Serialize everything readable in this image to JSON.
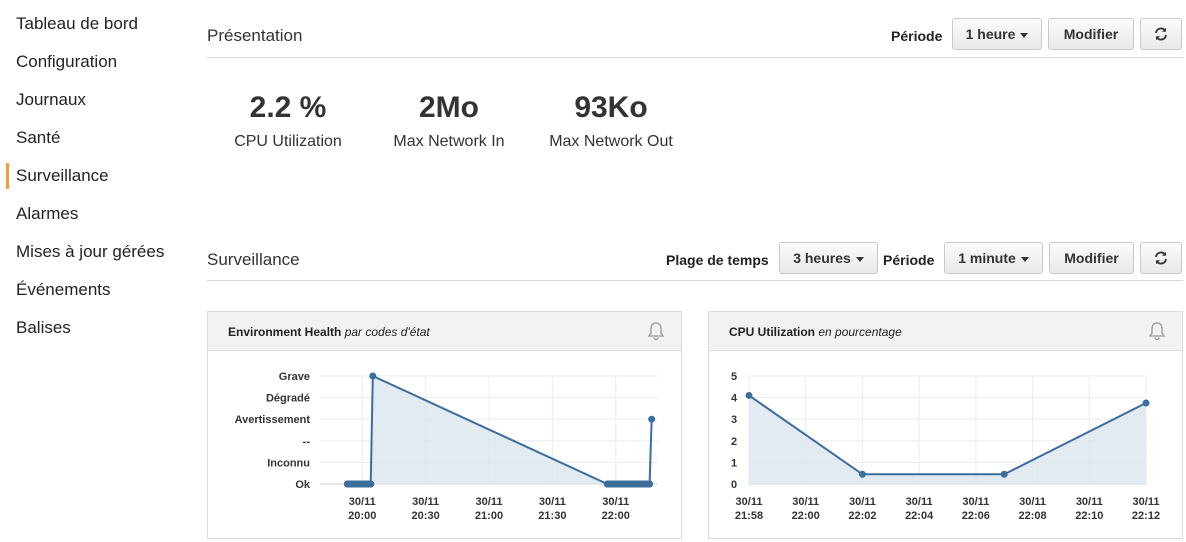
{
  "sidebar": {
    "items": [
      {
        "label": "Tableau de bord"
      },
      {
        "label": "Configuration"
      },
      {
        "label": "Journaux"
      },
      {
        "label": "Santé"
      },
      {
        "label": "Surveillance",
        "active": true
      },
      {
        "label": "Alarmes"
      },
      {
        "label": "Mises à jour gérées"
      },
      {
        "label": "Événements"
      },
      {
        "label": "Balises"
      }
    ]
  },
  "overview": {
    "title": "Présentation",
    "period_label": "Période",
    "period_value": "1 heure",
    "modify_label": "Modifier",
    "metrics": [
      {
        "value": "2.2 %",
        "label": "CPU Utilization"
      },
      {
        "value": "2Mo",
        "label": "Max Network In"
      },
      {
        "value": "93Ko",
        "label": "Max Network Out"
      }
    ]
  },
  "monitoring": {
    "title": "Surveillance",
    "range_label": "Plage de temps",
    "range_value": "3 heures",
    "period_label": "Période",
    "period_value": "1 minute",
    "modify_label": "Modifier"
  },
  "colors": {
    "accent": "#f0a02c",
    "line": "#3d6e9b",
    "area": "#dbe5ef"
  },
  "chart_data": [
    {
      "type": "area",
      "title": "Environment Health",
      "subtitle": "par codes d'état",
      "y_categories": [
        "Ok",
        "Inconnu",
        "--",
        "Avertissement",
        "Dégradé",
        "Grave"
      ],
      "x_ticks": [
        {
          "date": "30/11",
          "time": "20:00"
        },
        {
          "date": "30/11",
          "time": "20:30"
        },
        {
          "date": "30/11",
          "time": "21:00"
        },
        {
          "date": "30/11",
          "time": "21:30"
        },
        {
          "date": "30/11",
          "time": "22:00"
        }
      ],
      "points": [
        {
          "x": "19:53",
          "y": "Ok"
        },
        {
          "x": "20:04",
          "y": "Ok"
        },
        {
          "x": "20:05",
          "y": "Grave"
        },
        {
          "x": "21:56",
          "y": "Ok"
        },
        {
          "x": "22:16",
          "y": "Ok"
        },
        {
          "x": "22:17",
          "y": "Avertissement"
        }
      ]
    },
    {
      "type": "area",
      "title": "CPU Utilization",
      "subtitle": "en pourcentage",
      "y_ticks": [
        "0",
        "1",
        "2",
        "3",
        "4",
        "5"
      ],
      "ylim": [
        0,
        5
      ],
      "x_ticks": [
        {
          "date": "30/11",
          "time": "21:58"
        },
        {
          "date": "30/11",
          "time": "22:00"
        },
        {
          "date": "30/11",
          "time": "22:02"
        },
        {
          "date": "30/11",
          "time": "22:04"
        },
        {
          "date": "30/11",
          "time": "22:06"
        },
        {
          "date": "30/11",
          "time": "22:08"
        },
        {
          "date": "30/11",
          "time": "22:10"
        },
        {
          "date": "30/11",
          "time": "22:12"
        }
      ],
      "points": [
        {
          "x": "21:58",
          "y": 4.1
        },
        {
          "x": "22:02",
          "y": 0.45
        },
        {
          "x": "22:07",
          "y": 0.45
        },
        {
          "x": "22:12",
          "y": 3.75
        }
      ]
    }
  ]
}
